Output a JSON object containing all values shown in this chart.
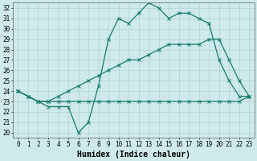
{
  "lines": [
    {
      "x": [
        0,
        1,
        2,
        3,
        4,
        5,
        6,
        7,
        8,
        9,
        10,
        11,
        12,
        13,
        14,
        15,
        16,
        17,
        18,
        19,
        20,
        21,
        22,
        23
      ],
      "y": [
        24,
        23.5,
        23,
        22.5,
        22.5,
        22.5,
        20,
        21,
        24.5,
        29,
        31,
        30.5,
        31.5,
        32.5,
        32,
        31,
        31.5,
        31.5,
        31,
        30.5,
        27,
        25,
        23.5,
        23.5
      ],
      "color": "#1a7a6e",
      "marker": "x",
      "linewidth": 0.9,
      "markersize": 2.5
    },
    {
      "x": [
        0,
        1,
        2,
        3,
        4,
        5,
        6,
        7,
        8,
        9,
        10,
        11,
        12,
        13,
        14,
        15,
        16,
        17,
        18,
        19,
        20,
        21,
        22,
        23
      ],
      "y": [
        24,
        23.5,
        23,
        23,
        23.5,
        24,
        24.5,
        25,
        25.5,
        26,
        26.5,
        27,
        27,
        27.5,
        28,
        28.5,
        28.5,
        28.5,
        28.5,
        29,
        29,
        27,
        25,
        23.5
      ],
      "color": "#1a7a6e",
      "marker": "x",
      "linewidth": 0.9,
      "markersize": 2.5
    },
    {
      "x": [
        0,
        1,
        2,
        3,
        4,
        5,
        6,
        7,
        8,
        9,
        10,
        11,
        12,
        13,
        14,
        15,
        16,
        17,
        18,
        19,
        20,
        21,
        22,
        23
      ],
      "y": [
        24,
        23.5,
        23,
        23,
        23,
        23,
        23,
        23,
        23,
        23,
        23,
        23,
        23,
        23,
        23,
        23,
        23,
        23,
        23,
        23,
        23,
        23,
        23,
        23.5
      ],
      "color": "#1a7a6e",
      "marker": "x",
      "linewidth": 0.9,
      "markersize": 2.5
    }
  ],
  "xlabel": "Humidex (Indice chaleur)",
  "xlim": [
    -0.5,
    23.5
  ],
  "ylim": [
    19.5,
    32.5
  ],
  "yticks": [
    20,
    21,
    22,
    23,
    24,
    25,
    26,
    27,
    28,
    29,
    30,
    31,
    32
  ],
  "xticks": [
    0,
    1,
    2,
    3,
    4,
    5,
    6,
    7,
    8,
    9,
    10,
    11,
    12,
    13,
    14,
    15,
    16,
    17,
    18,
    19,
    20,
    21,
    22,
    23
  ],
  "bg_color": "#ceeaea",
  "grid_color": "#aed4d4",
  "tick_fontsize": 5.5,
  "xlabel_fontsize": 7.0
}
